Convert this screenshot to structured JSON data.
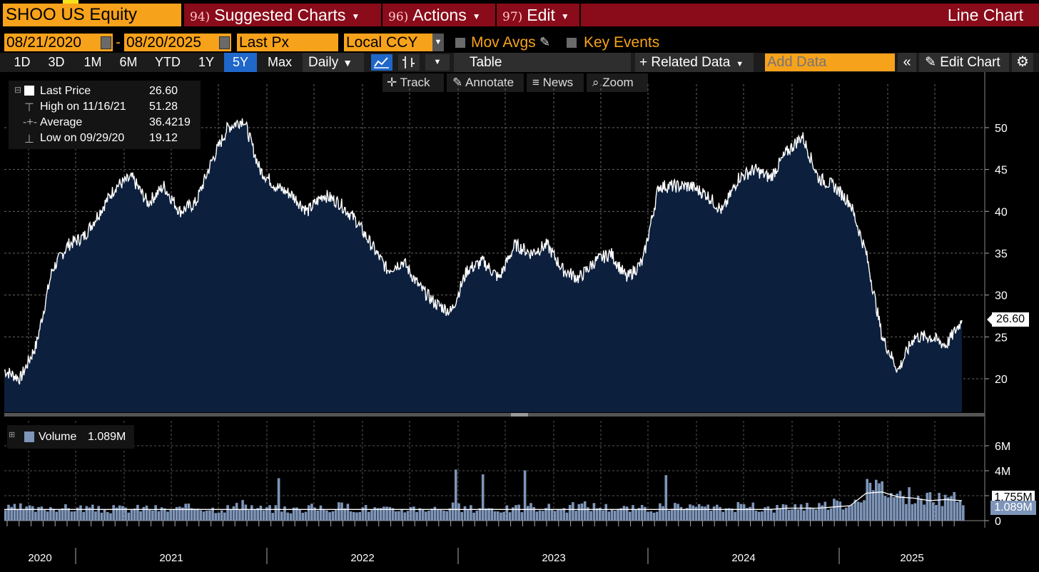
{
  "header": {
    "ticker": "SHOO US Equity",
    "menus": [
      {
        "num": "94)",
        "label": "Suggested Charts"
      },
      {
        "num": "96)",
        "label": "Actions"
      },
      {
        "num": "97)",
        "label": "Edit"
      }
    ],
    "chart_type": "Line Chart"
  },
  "controls": {
    "start_date": "08/21/2020",
    "date_sep": "-",
    "end_date": "08/20/2025",
    "field": "Last Px",
    "currency": "Local CCY",
    "mov_avgs": "Mov Avgs",
    "key_events": "Key Events"
  },
  "periods": [
    "1D",
    "3D",
    "1M",
    "6M",
    "YTD",
    "1Y",
    "5Y",
    "Max"
  ],
  "active_period": "5Y",
  "frequency": "Daily",
  "table_label": "Table",
  "related_data": "+ Related Data",
  "add_data_placeholder": "Add Data",
  "edit_chart": "Edit Chart",
  "tools": [
    "Track",
    "Annotate",
    "News",
    "Zoom"
  ],
  "legend": {
    "last_price_label": "Last Price",
    "last_price": "26.60",
    "high_label": "High on 11/16/21",
    "high": "51.28",
    "avg_label": "Average",
    "avg": "36.4219",
    "low_label": "Low on 09/29/20",
    "low": "19.12"
  },
  "volume_legend": {
    "label": "Volume",
    "value": "1.089M"
  },
  "price_tag": "26.60",
  "volume_tags": [
    "1.755M",
    "1.089M"
  ],
  "colors": {
    "orange": "#f7a21b",
    "menu_red": "#8a0b1a",
    "area_fill": "#0c1f3d",
    "volume_bar": "#7e95b9",
    "active_blue": "#1f67c9"
  },
  "chart_data": {
    "type": "area",
    "ylim": [
      16,
      54
    ],
    "yticks": [
      20,
      25,
      30,
      35,
      40,
      45,
      50
    ],
    "x_year_labels": [
      "2020",
      "2021",
      "2022",
      "2023",
      "2024",
      "2025"
    ],
    "series": [
      {
        "name": "Last Price",
        "x": [
          "2020-08",
          "2020-09",
          "2020-10",
          "2020-11",
          "2020-12",
          "2021-01",
          "2021-02",
          "2021-03",
          "2021-04",
          "2021-05",
          "2021-06",
          "2021-07",
          "2021-08",
          "2021-09",
          "2021-10",
          "2021-11",
          "2021-12",
          "2022-01",
          "2022-02",
          "2022-03",
          "2022-04",
          "2022-05",
          "2022-06",
          "2022-07",
          "2022-08",
          "2022-09",
          "2022-10",
          "2022-11",
          "2022-12",
          "2023-01",
          "2023-02",
          "2023-03",
          "2023-04",
          "2023-05",
          "2023-06",
          "2023-07",
          "2023-08",
          "2023-09",
          "2023-10",
          "2023-11",
          "2023-12",
          "2024-01",
          "2024-02",
          "2024-03",
          "2024-04",
          "2024-05",
          "2024-06",
          "2024-07",
          "2024-08",
          "2024-09",
          "2024-10",
          "2024-11",
          "2024-12",
          "2025-01",
          "2025-02",
          "2025-03",
          "2025-04",
          "2025-05",
          "2025-06",
          "2025-07",
          "2025-08"
        ],
        "values": [
          21,
          20,
          24,
          33,
          36,
          37,
          40,
          43,
          44,
          41,
          43,
          40,
          41,
          46,
          50,
          51,
          45,
          43,
          42,
          40,
          42,
          41,
          39,
          36,
          33,
          34,
          31,
          29,
          28,
          33,
          34,
          32,
          36,
          35,
          36,
          33,
          32,
          34,
          35,
          32,
          34,
          43,
          43,
          43,
          42,
          40,
          44,
          45,
          44,
          47,
          49,
          44,
          43,
          41,
          35,
          25,
          21,
          25,
          25,
          24,
          27
        ]
      }
    ],
    "volume": {
      "name": "Volume",
      "ylim": [
        0,
        8
      ],
      "yticks": [
        0,
        2,
        4,
        6
      ],
      "ytick_labels": [
        "0",
        "",
        "4M",
        "6M"
      ],
      "values_m": [
        1.0,
        1.1,
        0.9,
        1.2,
        1.0,
        1.1,
        0.9,
        1.0,
        1.0,
        1.1,
        0.9,
        1.0,
        1.2,
        1.0,
        1.1,
        1.3,
        1.0,
        1.0,
        0.9,
        1.1,
        1.0,
        1.2,
        1.1,
        1.0,
        0.9,
        1.0,
        1.1,
        1.0,
        1.2,
        1.0,
        1.1,
        1.0,
        1.0,
        1.2,
        1.1,
        1.0,
        1.3,
        1.2,
        1.1,
        1.0,
        1.0,
        1.1,
        1.2,
        1.0,
        1.1,
        1.0,
        1.2,
        1.1,
        1.0,
        1.2,
        1.3,
        1.3,
        1.4,
        1.6,
        2.6,
        2.8,
        2.2,
        2.0,
        1.8,
        1.9,
        1.7
      ],
      "moving_average_m": [
        0.9,
        0.9,
        0.9,
        0.9,
        0.9,
        0.9,
        0.9,
        0.9,
        0.9,
        0.9,
        0.9,
        0.9,
        0.9,
        0.9,
        0.9,
        0.9,
        0.9,
        0.9,
        0.9,
        0.9,
        0.9,
        0.9,
        0.9,
        0.9,
        0.9,
        0.9,
        0.9,
        0.9,
        0.9,
        0.9,
        0.9,
        0.9,
        0.9,
        0.9,
        0.9,
        0.9,
        0.9,
        0.9,
        0.9,
        0.9,
        0.9,
        0.9,
        0.9,
        0.9,
        0.9,
        0.9,
        0.9,
        0.9,
        0.9,
        1.0,
        1.0,
        1.0,
        1.1,
        1.2,
        2.2,
        2.3,
        1.9,
        1.8,
        1.6,
        1.7,
        1.6
      ]
    }
  }
}
